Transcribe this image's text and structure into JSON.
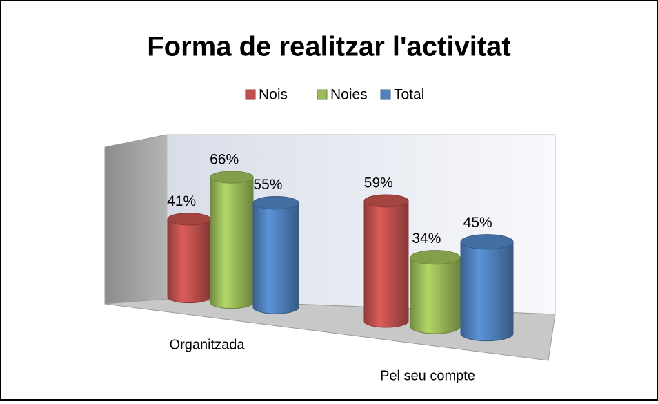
{
  "chart_data": {
    "type": "bar3d",
    "title": "Forma de realitzar l'activitat",
    "categories": [
      "Organitzada",
      "Pel seu compte"
    ],
    "series": [
      {
        "name": "Nois",
        "color": "#c0504d",
        "values": [
          41,
          59
        ],
        "value_labels": [
          "41%",
          "59%"
        ]
      },
      {
        "name": "Noies",
        "color": "#9bbb59",
        "values": [
          66,
          34
        ],
        "value_labels": [
          "66%",
          "34%"
        ]
      },
      {
        "name": "Total",
        "color": "#4f81bd",
        "values": [
          55,
          45
        ],
        "value_labels": [
          "55%",
          "45%"
        ]
      }
    ],
    "legend": "top"
  }
}
